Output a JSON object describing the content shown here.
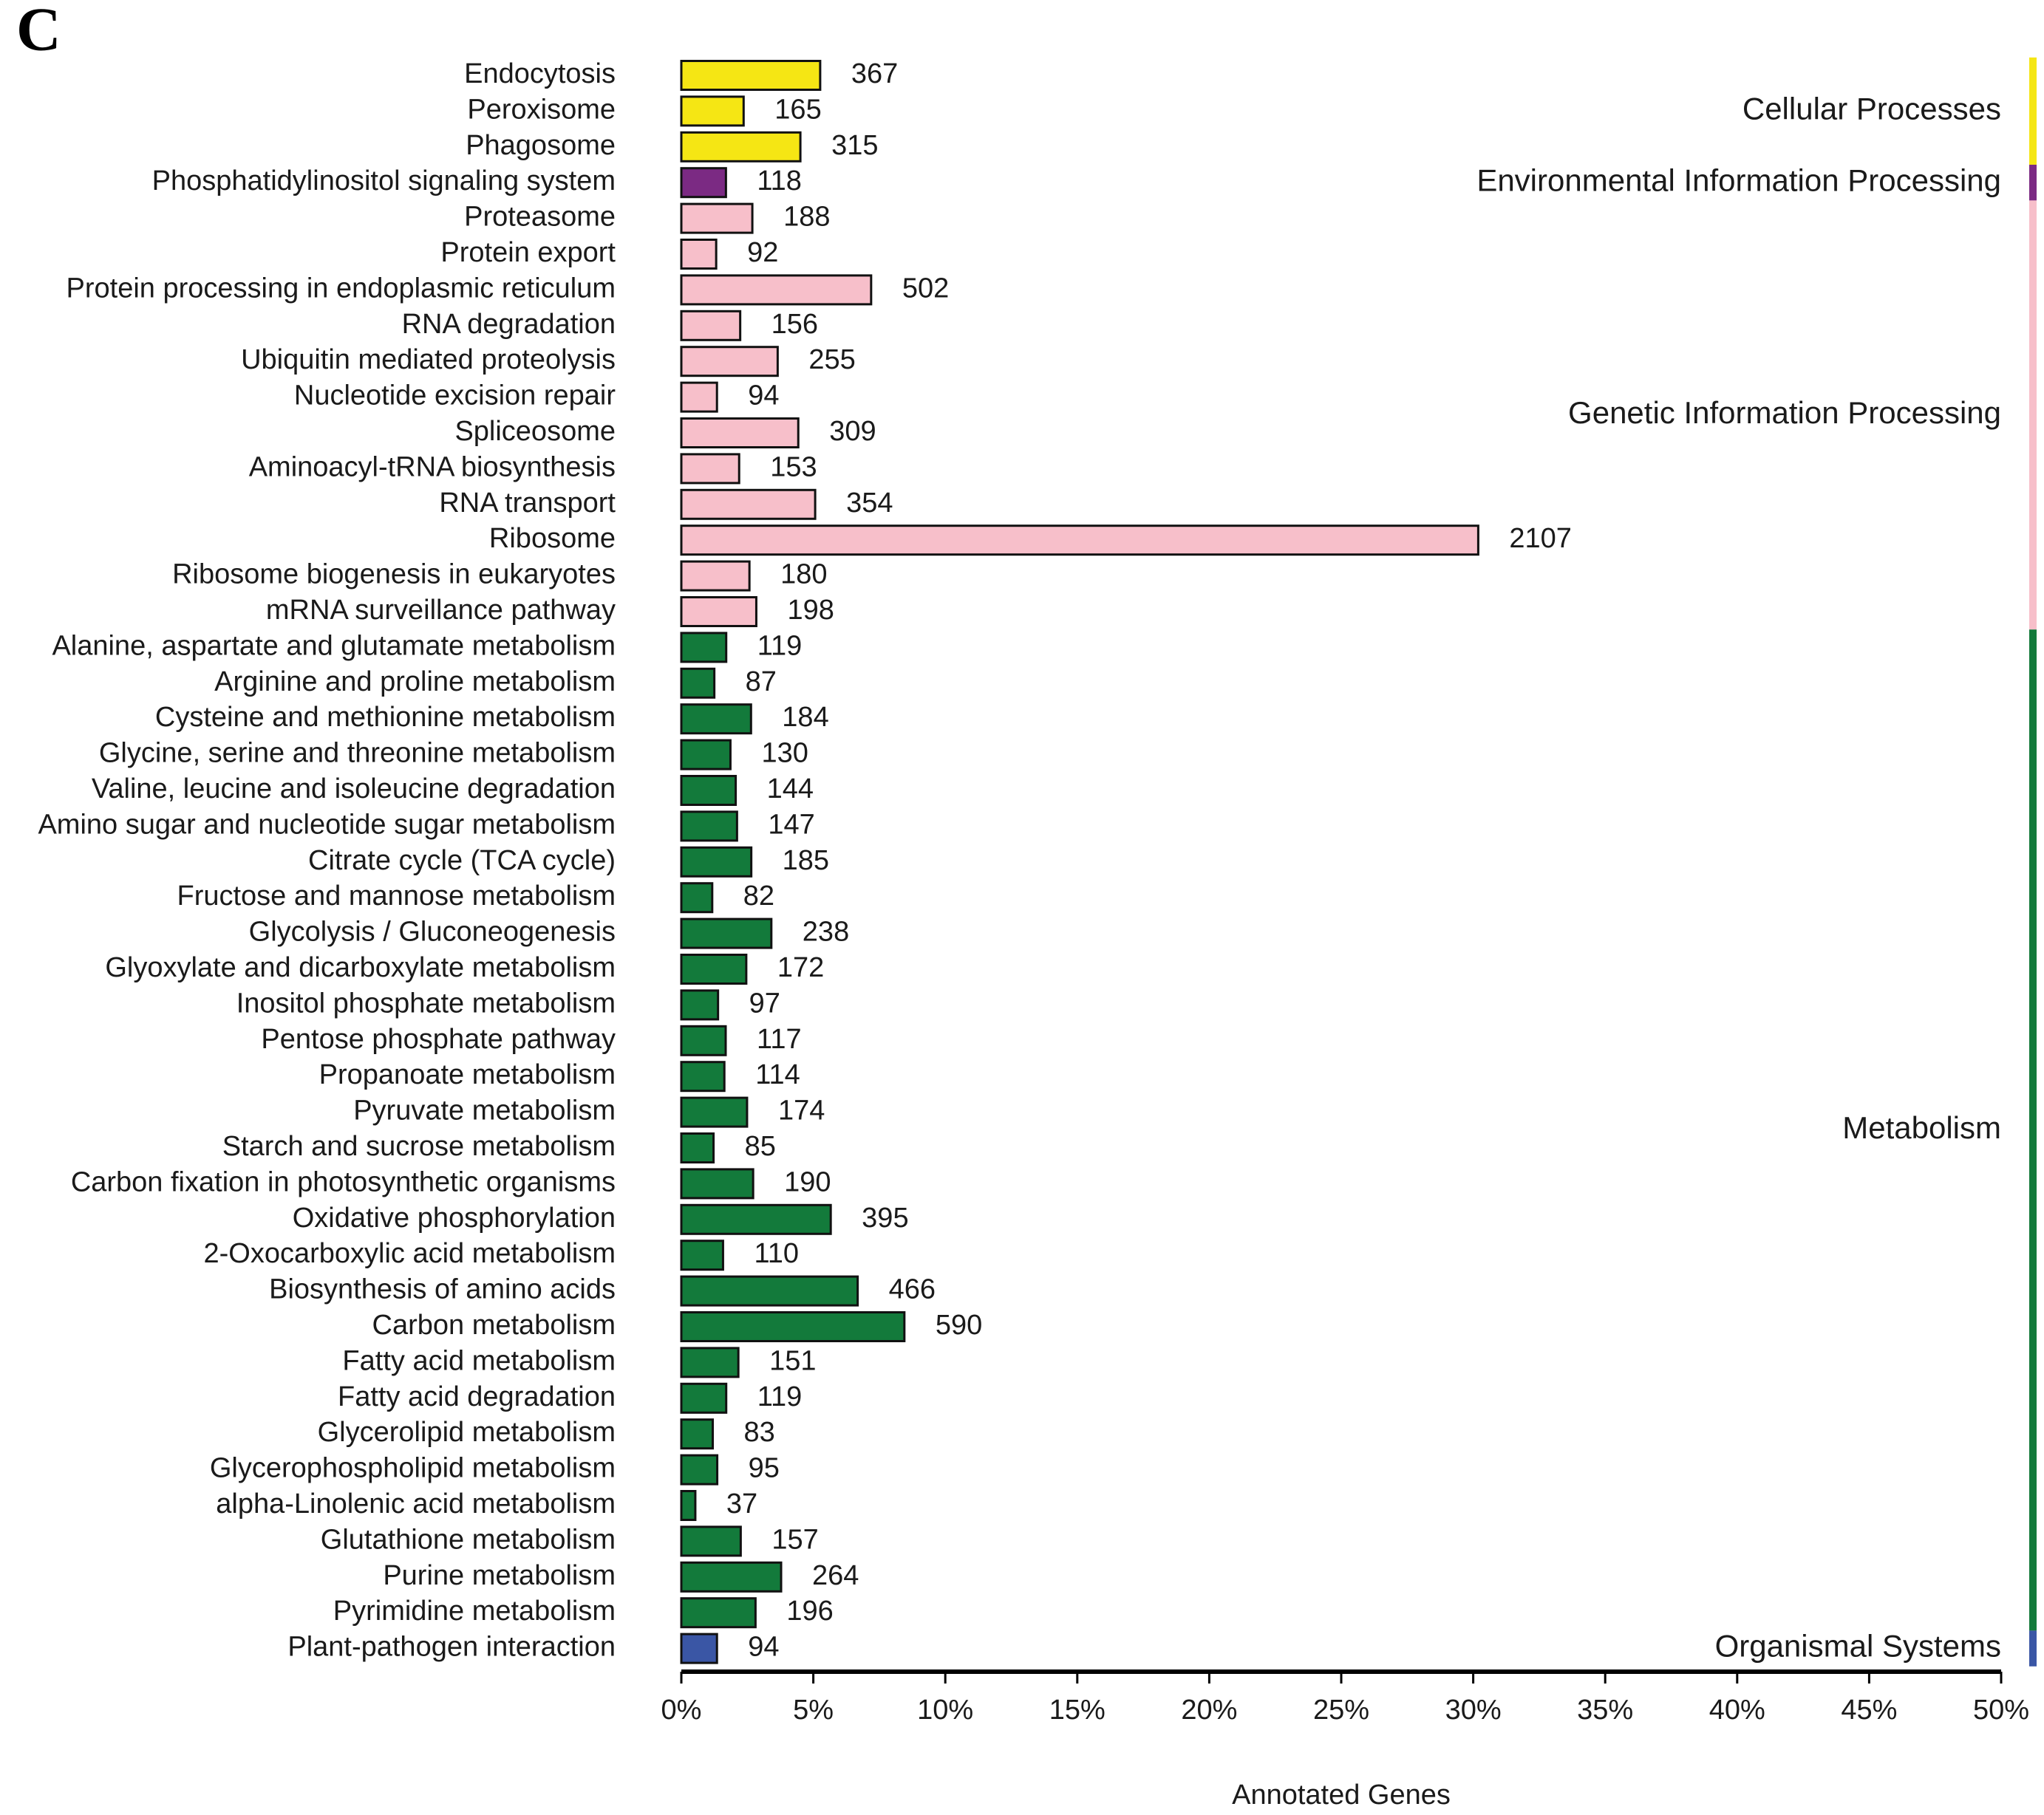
{
  "chart_data": {
    "type": "bar",
    "panel_label": "C",
    "xlabel": "Annotated Genes",
    "xlim": [
      0,
      50
    ],
    "xticks": [
      {
        "value": 0,
        "label": "0%"
      },
      {
        "value": 5,
        "label": "5%"
      },
      {
        "value": 10,
        "label": "10%"
      },
      {
        "value": 15,
        "label": "15%"
      },
      {
        "value": 20,
        "label": "20%"
      },
      {
        "value": 25,
        "label": "25%"
      },
      {
        "value": 30,
        "label": "30%"
      },
      {
        "value": 35,
        "label": "35%"
      },
      {
        "value": 40,
        "label": "40%"
      },
      {
        "value": 45,
        "label": "45%"
      },
      {
        "value": 50,
        "label": "50%"
      }
    ],
    "groups": [
      {
        "name": "Cellular Processes",
        "color": "#f5e614",
        "categories": [
          "Endocytosis",
          "Peroxisome",
          "Phagosome"
        ],
        "values": [
          5.26,
          2.36,
          4.51
        ],
        "counts": [
          367,
          165,
          315
        ]
      },
      {
        "name": "Environmental Information Processing",
        "color": "#7b2a83",
        "categories": [
          "Phosphatidylinositol signaling system"
        ],
        "values": [
          1.69
        ],
        "counts": [
          118
        ]
      },
      {
        "name": "Genetic Information Processing",
        "color": "#f7bfca",
        "categories": [
          "Proteasome",
          "Protein export",
          "Protein processing in endoplasmic reticulum",
          "RNA degradation",
          "Ubiquitin mediated proteolysis",
          "Nucleotide excision repair",
          "Spliceosome",
          "Aminoacyl-tRNA biosynthesis",
          "RNA transport",
          "Ribosome",
          "Ribosome biogenesis in eukaryotes",
          "mRNA surveillance pathway"
        ],
        "values": [
          2.69,
          1.32,
          7.19,
          2.23,
          3.65,
          1.35,
          4.43,
          2.19,
          5.07,
          30.19,
          2.58,
          2.84
        ],
        "counts": [
          188,
          92,
          502,
          156,
          255,
          94,
          309,
          153,
          354,
          2107,
          180,
          198
        ]
      },
      {
        "name": "Metabolism",
        "color": "#137a3b",
        "categories": [
          "Alanine, aspartate and glutamate metabolism",
          "Arginine and proline metabolism",
          "Cysteine and methionine metabolism",
          "Glycine, serine and threonine metabolism",
          "Valine, leucine and isoleucine degradation",
          "Amino sugar and nucleotide sugar metabolism",
          "Citrate cycle (TCA cycle)",
          "Fructose and mannose metabolism",
          "Glycolysis / Gluconeogenesis",
          "Glyoxylate and dicarboxylate metabolism",
          "Inositol phosphate metabolism",
          "Pentose phosphate pathway",
          "Propanoate metabolism",
          "Pyruvate metabolism",
          "Starch and sucrose metabolism",
          "Carbon fixation in photosynthetic organisms",
          "Oxidative phosphorylation",
          "2-Oxocarboxylic acid metabolism",
          "Biosynthesis of amino acids",
          "Carbon metabolism",
          "Fatty acid metabolism",
          "Fatty acid degradation",
          "Glycerolipid metabolism",
          "Glycerophospholipid metabolism",
          "alpha-Linolenic acid metabolism",
          "Glutathione metabolism",
          "Purine metabolism",
          "Pyrimidine metabolism"
        ],
        "values": [
          1.7,
          1.25,
          2.64,
          1.86,
          2.06,
          2.11,
          2.65,
          1.17,
          3.41,
          2.46,
          1.39,
          1.68,
          1.63,
          2.49,
          1.22,
          2.72,
          5.66,
          1.58,
          6.68,
          8.45,
          2.16,
          1.7,
          1.19,
          1.36,
          0.53,
          2.25,
          3.78,
          2.81
        ],
        "counts": [
          119,
          87,
          184,
          130,
          144,
          147,
          185,
          82,
          238,
          172,
          97,
          117,
          114,
          174,
          85,
          190,
          395,
          110,
          466,
          590,
          151,
          119,
          83,
          95,
          37,
          157,
          264,
          196
        ]
      },
      {
        "name": "Organismal Systems",
        "color": "#3a56a5",
        "categories": [
          "Plant-pathogen interaction"
        ],
        "values": [
          1.35
        ],
        "counts": [
          94
        ]
      }
    ]
  }
}
